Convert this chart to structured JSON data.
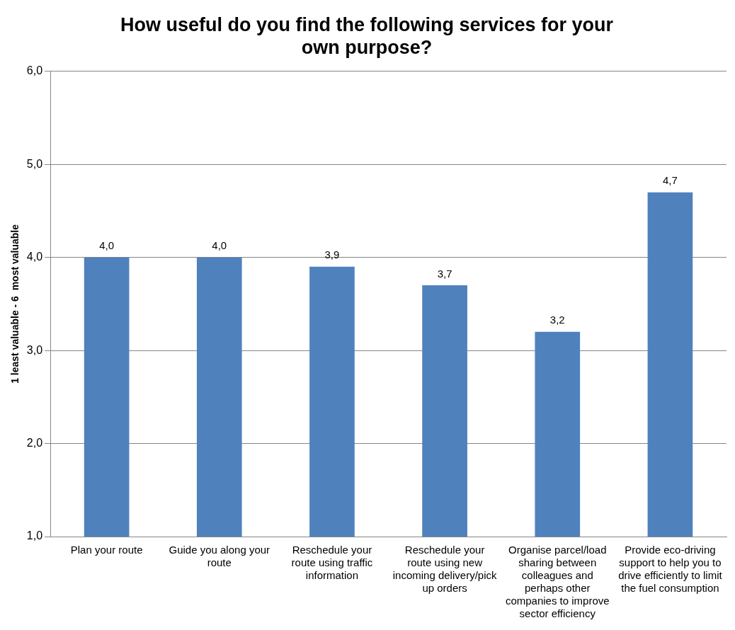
{
  "chart_data": {
    "type": "bar",
    "title": "How useful do you find the following services for your own purpose?",
    "ylabel": "1 least valuable - 6  most valuable",
    "categories": [
      "Plan your route",
      "Guide you along your route",
      "Reschedule your route using traffic information",
      "Reschedule your route using new incoming delivery/pick up orders",
      "Organise parcel/load sharing between colleagues and perhaps other companies to improve sector efficiency",
      "Provide eco-driving support to help you to drive efficiently to limit the fuel consumption"
    ],
    "values": [
      4.0,
      4.0,
      3.9,
      3.7,
      3.2,
      4.7
    ],
    "color": "#4f81bd",
    "value_labels": [
      "4,0",
      "4,0",
      "3,9",
      "3,7",
      "3,2",
      "4,7"
    ],
    "ylim": [
      1,
      6
    ],
    "yticks": [
      {
        "value": 1,
        "label": "1,0"
      },
      {
        "value": 2,
        "label": "2,0"
      },
      {
        "value": 3,
        "label": "3,0"
      },
      {
        "value": 4,
        "label": "4,0"
      },
      {
        "value": 5,
        "label": "5,0"
      },
      {
        "value": 6,
        "label": "6,0"
      }
    ],
    "grid": "y",
    "legend": false
  }
}
